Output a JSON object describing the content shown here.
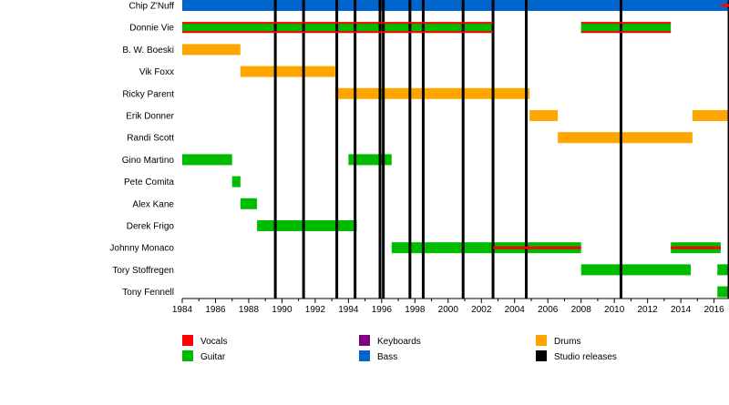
{
  "chart_data": {
    "type": "timeline",
    "title": "",
    "xlabel": "",
    "ylabel": "",
    "xlim": [
      1984,
      2016.9
    ],
    "x_ticks": [
      "1984",
      "1986",
      "1988",
      "1990",
      "1992",
      "1994",
      "1996",
      "1998",
      "2000",
      "2002",
      "2004",
      "2006",
      "2008",
      "2010",
      "2012",
      "2014",
      "2016"
    ],
    "colors": {
      "Vocals": "#ff0000",
      "Keyboards": "#800080",
      "Drums": "#ffa500",
      "Guitar": "#00bb00",
      "Bass": "#0066cc",
      "Studio releases": "#000000"
    },
    "members": [
      {
        "name": "Chip Z'Nuff",
        "spans": [
          {
            "role": "Bass",
            "start": 1984,
            "end": 2016.9
          },
          {
            "role": "Vocals",
            "start": 2016.4,
            "end": 2016.9,
            "overlay": true
          }
        ]
      },
      {
        "name": "Donnie Vie",
        "spans": [
          {
            "role": "Guitar",
            "start": 1984,
            "end": 2002.7
          },
          {
            "role": "Vocals",
            "start": 1984,
            "end": 2002.7,
            "edges": true
          },
          {
            "role": "Guitar",
            "start": 2008,
            "end": 2013.4
          },
          {
            "role": "Vocals",
            "start": 2008,
            "end": 2013.4,
            "edges": true
          }
        ]
      },
      {
        "name": "B. W. Boeski",
        "spans": [
          {
            "role": "Drums",
            "start": 1984,
            "end": 1987.5
          }
        ]
      },
      {
        "name": "Vik Foxx",
        "spans": [
          {
            "role": "Drums",
            "start": 1987.5,
            "end": 1993.2
          }
        ]
      },
      {
        "name": "Ricky Parent",
        "spans": [
          {
            "role": "Drums",
            "start": 1993.2,
            "end": 2004.9
          }
        ]
      },
      {
        "name": "Erik Donner",
        "spans": [
          {
            "role": "Drums",
            "start": 2004.9,
            "end": 2006.6
          },
          {
            "role": "Drums",
            "start": 2014.7,
            "end": 2016.9
          }
        ]
      },
      {
        "name": "Randi Scott",
        "spans": [
          {
            "role": "Drums",
            "start": 2006.6,
            "end": 2014.7
          }
        ]
      },
      {
        "name": "Gino Martino",
        "spans": [
          {
            "role": "Guitar",
            "start": 1984,
            "end": 1987
          },
          {
            "role": "Guitar",
            "start": 1994,
            "end": 1996.6
          }
        ]
      },
      {
        "name": "Pete Comita",
        "spans": [
          {
            "role": "Guitar",
            "start": 1987,
            "end": 1987.5
          }
        ]
      },
      {
        "name": "Alex Kane",
        "spans": [
          {
            "role": "Guitar",
            "start": 1987.5,
            "end": 1988.5
          }
        ]
      },
      {
        "name": "Derek Frigo",
        "spans": [
          {
            "role": "Guitar",
            "start": 1988.5,
            "end": 1994.5
          }
        ]
      },
      {
        "name": "Johnny Monaco",
        "spans": [
          {
            "role": "Guitar",
            "start": 1996.6,
            "end": 2008
          },
          {
            "role": "Vocals",
            "start": 2002.7,
            "end": 2008,
            "overlay": true
          },
          {
            "role": "Guitar",
            "start": 2013.4,
            "end": 2016.4
          },
          {
            "role": "Vocals",
            "start": 2013.4,
            "end": 2016.4,
            "overlay": true
          }
        ]
      },
      {
        "name": "Tory Stoffregen",
        "spans": [
          {
            "role": "Guitar",
            "start": 2008,
            "end": 2014.6
          },
          {
            "role": "Guitar",
            "start": 2016.2,
            "end": 2016.9
          }
        ]
      },
      {
        "name": "Tony Fennell",
        "spans": [
          {
            "role": "Guitar",
            "start": 2016.2,
            "end": 2016.9
          }
        ]
      }
    ],
    "studio_releases": [
      1989.6,
      1991.3,
      1993.3,
      1994.4,
      1995.9,
      1996.1,
      1997.7,
      1998.5,
      2000.9,
      2002.7,
      2004.7,
      2010.4,
      2016.9
    ],
    "legend": [
      {
        "label": "Vocals",
        "color": "#ff0000"
      },
      {
        "label": "Keyboards",
        "color": "#800080"
      },
      {
        "label": "Drums",
        "color": "#ffa500"
      },
      {
        "label": "Guitar",
        "color": "#00bb00"
      },
      {
        "label": "Bass",
        "color": "#0066cc"
      },
      {
        "label": "Studio releases",
        "color": "#000000"
      }
    ],
    "legend_placement": "bottom"
  }
}
